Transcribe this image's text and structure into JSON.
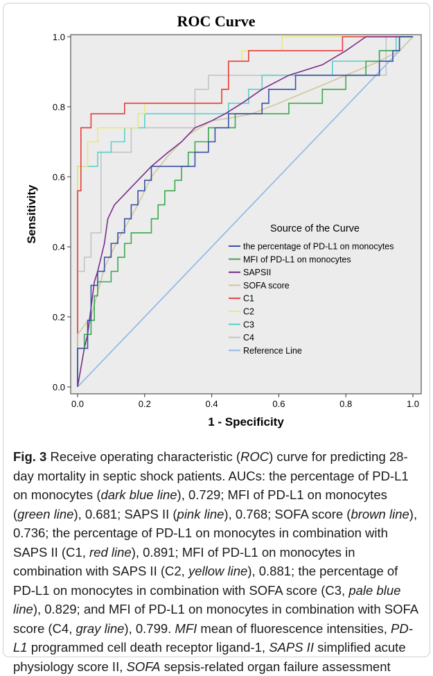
{
  "chart_data": {
    "type": "line",
    "title": "ROC Curve",
    "xlabel": "1 - Specificity",
    "ylabel": "Sensitivity",
    "xlim": [
      0,
      1
    ],
    "ylim": [
      0,
      1
    ],
    "xticks": [
      "0.0",
      "0.2",
      "0.4",
      "0.6",
      "0.8",
      "1.0"
    ],
    "yticks": [
      "0.0",
      "0.2",
      "0.4",
      "0.6",
      "0.8",
      "1.0"
    ],
    "grid": false,
    "legend": {
      "title": "Source of the Curve",
      "placement": "center-right"
    },
    "series": [
      {
        "name": "the percentage of PD-L1 on monocytes",
        "color": "#3a4fa6",
        "points": [
          [
            0,
            0
          ],
          [
            0,
            0.11
          ],
          [
            0.03,
            0.11
          ],
          [
            0.03,
            0.19
          ],
          [
            0.04,
            0.19
          ],
          [
            0.04,
            0.29
          ],
          [
            0.06,
            0.29
          ],
          [
            0.06,
            0.33
          ],
          [
            0.08,
            0.33
          ],
          [
            0.08,
            0.37
          ],
          [
            0.1,
            0.37
          ],
          [
            0.1,
            0.41
          ],
          [
            0.12,
            0.41
          ],
          [
            0.12,
            0.44
          ],
          [
            0.14,
            0.44
          ],
          [
            0.14,
            0.48
          ],
          [
            0.16,
            0.48
          ],
          [
            0.16,
            0.52
          ],
          [
            0.18,
            0.52
          ],
          [
            0.18,
            0.56
          ],
          [
            0.2,
            0.56
          ],
          [
            0.2,
            0.59
          ],
          [
            0.22,
            0.59
          ],
          [
            0.22,
            0.63
          ],
          [
            0.35,
            0.63
          ],
          [
            0.35,
            0.67
          ],
          [
            0.39,
            0.67
          ],
          [
            0.39,
            0.7
          ],
          [
            0.41,
            0.7
          ],
          [
            0.41,
            0.74
          ],
          [
            0.45,
            0.74
          ],
          [
            0.45,
            0.78
          ],
          [
            0.55,
            0.78
          ],
          [
            0.55,
            0.81
          ],
          [
            0.57,
            0.81
          ],
          [
            0.57,
            0.85
          ],
          [
            0.65,
            0.85
          ],
          [
            0.65,
            0.89
          ],
          [
            0.9,
            0.89
          ],
          [
            0.9,
            0.93
          ],
          [
            0.94,
            0.93
          ],
          [
            0.94,
            0.96
          ],
          [
            0.96,
            0.96
          ],
          [
            0.96,
            1.0
          ],
          [
            1.0,
            1.0
          ]
        ]
      },
      {
        "name": "MFI of PD-L1 on monocytes",
        "color": "#3aa84a",
        "points": [
          [
            0,
            0
          ],
          [
            0,
            0.11
          ],
          [
            0.02,
            0.11
          ],
          [
            0.02,
            0.15
          ],
          [
            0.04,
            0.15
          ],
          [
            0.04,
            0.19
          ],
          [
            0.05,
            0.19
          ],
          [
            0.05,
            0.26
          ],
          [
            0.06,
            0.26
          ],
          [
            0.06,
            0.3
          ],
          [
            0.1,
            0.3
          ],
          [
            0.1,
            0.33
          ],
          [
            0.12,
            0.33
          ],
          [
            0.12,
            0.37
          ],
          [
            0.14,
            0.37
          ],
          [
            0.14,
            0.41
          ],
          [
            0.16,
            0.41
          ],
          [
            0.16,
            0.44
          ],
          [
            0.22,
            0.44
          ],
          [
            0.22,
            0.48
          ],
          [
            0.24,
            0.48
          ],
          [
            0.24,
            0.52
          ],
          [
            0.26,
            0.52
          ],
          [
            0.26,
            0.56
          ],
          [
            0.29,
            0.56
          ],
          [
            0.29,
            0.59
          ],
          [
            0.31,
            0.59
          ],
          [
            0.31,
            0.63
          ],
          [
            0.33,
            0.63
          ],
          [
            0.33,
            0.67
          ],
          [
            0.35,
            0.67
          ],
          [
            0.35,
            0.7
          ],
          [
            0.39,
            0.7
          ],
          [
            0.39,
            0.74
          ],
          [
            0.47,
            0.74
          ],
          [
            0.47,
            0.78
          ],
          [
            0.63,
            0.78
          ],
          [
            0.63,
            0.81
          ],
          [
            0.73,
            0.81
          ],
          [
            0.73,
            0.85
          ],
          [
            0.8,
            0.85
          ],
          [
            0.8,
            0.89
          ],
          [
            0.86,
            0.89
          ],
          [
            0.86,
            0.93
          ],
          [
            0.9,
            0.93
          ],
          [
            0.9,
            0.96
          ],
          [
            0.96,
            0.96
          ],
          [
            0.96,
            1.0
          ],
          [
            1.0,
            1.0
          ]
        ]
      },
      {
        "name": "SAPSII",
        "color": "#7a2a8a",
        "points": [
          [
            0,
            0
          ],
          [
            0.02,
            0.11
          ],
          [
            0.03,
            0.15
          ],
          [
            0.05,
            0.3
          ],
          [
            0.06,
            0.33
          ],
          [
            0.08,
            0.41
          ],
          [
            0.09,
            0.48
          ],
          [
            0.11,
            0.52
          ],
          [
            0.15,
            0.56
          ],
          [
            0.18,
            0.59
          ],
          [
            0.22,
            0.63
          ],
          [
            0.27,
            0.67
          ],
          [
            0.31,
            0.7
          ],
          [
            0.35,
            0.74
          ],
          [
            0.4,
            0.76
          ],
          [
            0.44,
            0.78
          ],
          [
            0.49,
            0.81
          ],
          [
            0.55,
            0.85
          ],
          [
            0.63,
            0.89
          ],
          [
            0.73,
            0.92
          ],
          [
            0.8,
            0.96
          ],
          [
            0.86,
            1.0
          ],
          [
            1.0,
            1.0
          ]
        ]
      },
      {
        "name": "SOFA score",
        "color": "#cfc79a",
        "points": [
          [
            0,
            0
          ],
          [
            0,
            0.15
          ],
          [
            0.04,
            0.2
          ],
          [
            0.08,
            0.34
          ],
          [
            0.12,
            0.42
          ],
          [
            0.18,
            0.52
          ],
          [
            0.22,
            0.6
          ],
          [
            0.27,
            0.66
          ],
          [
            0.33,
            0.72
          ],
          [
            0.4,
            0.76
          ],
          [
            0.47,
            0.77
          ],
          [
            0.52,
            0.78
          ],
          [
            0.6,
            0.81
          ],
          [
            0.7,
            0.85
          ],
          [
            0.8,
            0.89
          ],
          [
            0.9,
            0.93
          ],
          [
            0.96,
            0.96
          ],
          [
            1.0,
            1.0
          ]
        ]
      },
      {
        "name": "C1",
        "color": "#e83a3a",
        "points": [
          [
            0,
            0
          ],
          [
            0,
            0.56
          ],
          [
            0.01,
            0.56
          ],
          [
            0.01,
            0.74
          ],
          [
            0.04,
            0.74
          ],
          [
            0.04,
            0.78
          ],
          [
            0.14,
            0.78
          ],
          [
            0.14,
            0.81
          ],
          [
            0.43,
            0.81
          ],
          [
            0.43,
            0.85
          ],
          [
            0.45,
            0.85
          ],
          [
            0.45,
            0.93
          ],
          [
            0.51,
            0.93
          ],
          [
            0.51,
            0.96
          ],
          [
            0.79,
            0.96
          ],
          [
            0.79,
            1.0
          ],
          [
            1.0,
            1.0
          ]
        ]
      },
      {
        "name": "C2",
        "color": "#ece87a",
        "points": [
          [
            0,
            0
          ],
          [
            0,
            0.63
          ],
          [
            0.03,
            0.63
          ],
          [
            0.03,
            0.7
          ],
          [
            0.06,
            0.7
          ],
          [
            0.06,
            0.74
          ],
          [
            0.18,
            0.74
          ],
          [
            0.18,
            0.78
          ],
          [
            0.2,
            0.78
          ],
          [
            0.2,
            0.81
          ],
          [
            0.43,
            0.81
          ],
          [
            0.43,
            0.85
          ],
          [
            0.45,
            0.85
          ],
          [
            0.45,
            0.93
          ],
          [
            0.49,
            0.93
          ],
          [
            0.49,
            0.96
          ],
          [
            0.61,
            0.96
          ],
          [
            0.61,
            1.0
          ],
          [
            1.0,
            1.0
          ]
        ]
      },
      {
        "name": "C3",
        "color": "#5ad0cc",
        "points": [
          [
            0,
            0
          ],
          [
            0,
            0.63
          ],
          [
            0.06,
            0.63
          ],
          [
            0.06,
            0.67
          ],
          [
            0.1,
            0.67
          ],
          [
            0.1,
            0.7
          ],
          [
            0.14,
            0.7
          ],
          [
            0.14,
            0.74
          ],
          [
            0.2,
            0.74
          ],
          [
            0.2,
            0.78
          ],
          [
            0.45,
            0.78
          ],
          [
            0.45,
            0.81
          ],
          [
            0.51,
            0.81
          ],
          [
            0.51,
            0.85
          ],
          [
            0.55,
            0.85
          ],
          [
            0.55,
            0.89
          ],
          [
            0.76,
            0.89
          ],
          [
            0.76,
            0.93
          ],
          [
            0.9,
            0.93
          ],
          [
            0.9,
            0.96
          ],
          [
            0.95,
            0.96
          ],
          [
            0.95,
            1.0
          ],
          [
            1.0,
            1.0
          ]
        ]
      },
      {
        "name": "C4",
        "color": "#c4c4c4",
        "points": [
          [
            0,
            0
          ],
          [
            0,
            0.33
          ],
          [
            0.02,
            0.33
          ],
          [
            0.02,
            0.37
          ],
          [
            0.04,
            0.37
          ],
          [
            0.04,
            0.44
          ],
          [
            0.07,
            0.44
          ],
          [
            0.07,
            0.67
          ],
          [
            0.16,
            0.67
          ],
          [
            0.16,
            0.74
          ],
          [
            0.35,
            0.74
          ],
          [
            0.35,
            0.85
          ],
          [
            0.39,
            0.85
          ],
          [
            0.39,
            0.89
          ],
          [
            0.92,
            0.89
          ],
          [
            0.92,
            1.0
          ],
          [
            1.0,
            1.0
          ]
        ]
      },
      {
        "name": "Reference Line",
        "color": "#8cb6e8",
        "points": [
          [
            0,
            0
          ],
          [
            1,
            1
          ]
        ]
      }
    ]
  },
  "caption": {
    "label": "Fig. 3",
    "parts": [
      {
        "t": " Receive operating characteristic (",
        "s": "n"
      },
      {
        "t": "ROC",
        "s": "i"
      },
      {
        "t": ") curve for predicting 28-day mortality in septic shock patients. AUCs: the percentage of PD-L1 on monocytes (",
        "s": "n"
      },
      {
        "t": "dark blue line",
        "s": "i"
      },
      {
        "t": "), 0.729; MFI of PD-L1 on monocytes (",
        "s": "n"
      },
      {
        "t": "green line",
        "s": "i"
      },
      {
        "t": "), 0.681; SAPS II (",
        "s": "n"
      },
      {
        "t": "pink line",
        "s": "i"
      },
      {
        "t": "), 0.768; SOFA score (",
        "s": "n"
      },
      {
        "t": "brown line",
        "s": "i"
      },
      {
        "t": "), 0.736; the percentage of PD-L1 on monocytes in combination with SAPS II (C1, ",
        "s": "n"
      },
      {
        "t": "red line",
        "s": "i"
      },
      {
        "t": "), 0.891; MFI of PD-L1 on monocytes in combination with SAPS II (C2, ",
        "s": "n"
      },
      {
        "t": "yellow line",
        "s": "i"
      },
      {
        "t": "), 0.881; the percentage of PD-L1 on monocytes in combination with SOFA score (C3, ",
        "s": "n"
      },
      {
        "t": "pale blue line",
        "s": "i"
      },
      {
        "t": "), 0.829; and MFI of PD-L1 on monocytes in combination with SOFA score (C4, ",
        "s": "n"
      },
      {
        "t": "gray line",
        "s": "i"
      },
      {
        "t": "), 0.799. ",
        "s": "n"
      },
      {
        "t": "MFI",
        "s": "i"
      },
      {
        "t": " mean of fluorescence intensities, ",
        "s": "n"
      },
      {
        "t": "PD-L1",
        "s": "i"
      },
      {
        "t": " programmed cell death receptor ligand-1, ",
        "s": "n"
      },
      {
        "t": "SAPS II",
        "s": "i"
      },
      {
        "t": " simplified acute physiology score II, ",
        "s": "n"
      },
      {
        "t": "SOFA",
        "s": "i"
      },
      {
        "t": " sepsis-related organ failure assessment",
        "s": "n"
      }
    ]
  }
}
